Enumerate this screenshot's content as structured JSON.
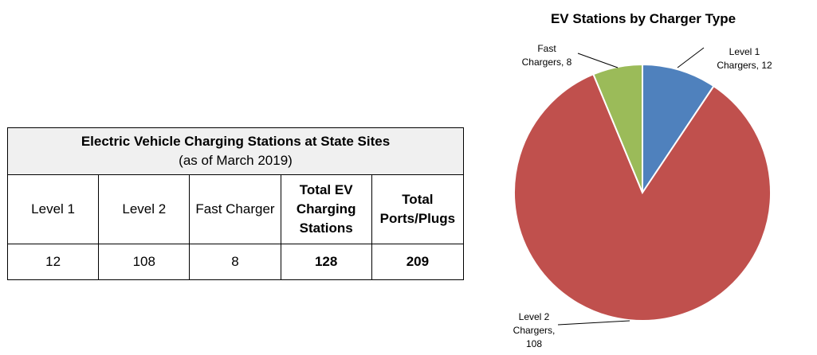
{
  "table": {
    "title": "Electric Vehicle Charging Stations at State Sites",
    "subtitle": "(as of March 2019)",
    "headers": [
      [
        "Level 1"
      ],
      [
        "Level 2"
      ],
      [
        "Fast Charger"
      ],
      [
        "Total EV",
        "Charging",
        "Stations"
      ],
      [
        "Total",
        "Ports/Plugs"
      ]
    ],
    "values": [
      "12",
      "108",
      "8",
      "128",
      "209"
    ]
  },
  "chart_data": {
    "type": "pie",
    "title": "EV Stations by Charger Type",
    "slices": [
      {
        "name": "Level 1 Chargers",
        "value": 12,
        "color": "#4f81bd",
        "label_lines": [
          "Level 1",
          "Chargers, 12"
        ]
      },
      {
        "name": "Level 2 Chargers",
        "value": 108,
        "color": "#c0504d",
        "label_lines": [
          "Level 2",
          "Chargers,",
          "108"
        ]
      },
      {
        "name": "Fast Chargers",
        "value": 8,
        "color": "#9bbb59",
        "label_lines": [
          "Fast",
          "Chargers, 8"
        ]
      }
    ]
  }
}
